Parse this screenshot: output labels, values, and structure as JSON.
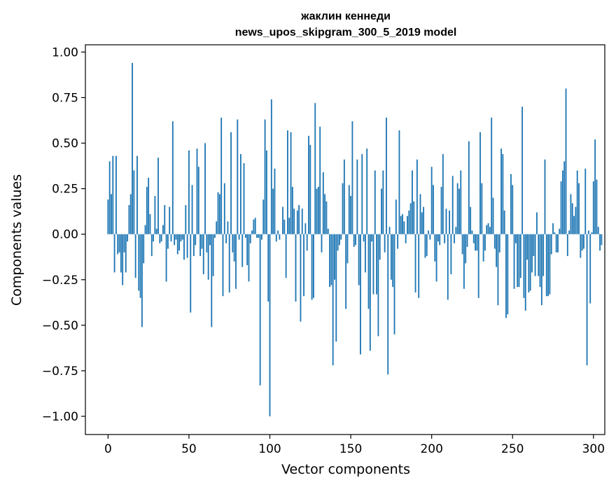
{
  "chart_data": {
    "type": "bar",
    "title": "жаклин кеннеди",
    "subtitle": "news_upos_skipgram_300_5_2019 model",
    "xlabel": "Vector components",
    "ylabel": "Components values",
    "xlim": [
      -14,
      307
    ],
    "ylim": [
      -1.1,
      1.04
    ],
    "xticks": [
      0,
      50,
      100,
      150,
      200,
      250,
      300
    ],
    "yticks": [
      1.0,
      0.75,
      0.5,
      0.25,
      0.0,
      -0.25,
      -0.5,
      -0.75,
      -1.0
    ],
    "xtick_labels": [
      "0",
      "50",
      "100",
      "150",
      "200",
      "250",
      "300"
    ],
    "ytick_labels": [
      "1.00",
      "0.75",
      "0.50",
      "0.25",
      "0.00",
      "−0.25",
      "−0.50",
      "−0.75",
      "−1.00"
    ],
    "grid": false,
    "color": "#1f77b4",
    "values": [
      0.19,
      0.4,
      0.22,
      0.43,
      -0.21,
      0.43,
      -0.11,
      -0.1,
      -0.21,
      -0.28,
      -0.1,
      -0.21,
      -0.04,
      0.16,
      0.22,
      0.94,
      0.35,
      -0.24,
      0.43,
      -0.31,
      -0.35,
      -0.51,
      -0.16,
      0.05,
      0.26,
      0.31,
      0.11,
      -0.12,
      -0.04,
      0.21,
      0.03,
      0.42,
      -0.05,
      -0.04,
      0.05,
      0.16,
      -0.26,
      -0.08,
      0.15,
      -0.04,
      0.62,
      -0.06,
      -0.03,
      -0.11,
      -0.09,
      -0.04,
      -0.03,
      -0.14,
      0.16,
      -0.13,
      0.46,
      -0.43,
      0.27,
      -0.12,
      -0.06,
      0.47,
      0.37,
      -0.12,
      -0.08,
      -0.22,
      0.5,
      -0.1,
      -0.25,
      -0.06,
      -0.51,
      -0.23,
      -0.02,
      0.07,
      0.23,
      0.22,
      0.64,
      -0.34,
      0.28,
      -0.05,
      0.07,
      -0.32,
      0.56,
      -0.1,
      -0.15,
      -0.3,
      0.63,
      -0.03,
      0.44,
      -0.18,
      0.39,
      -0.02,
      -0.17,
      -0.26,
      -0.05,
      0.02,
      0.08,
      0.09,
      -0.02,
      -0.02,
      -0.83,
      -0.03,
      0.19,
      0.63,
      0.46,
      -0.37,
      -1.0,
      0.74,
      0.25,
      0.36,
      -0.04,
      0.02,
      -0.03,
      0.0,
      0.15,
      0.08,
      -0.24,
      0.57,
      0.09,
      0.56,
      0.26,
      0.14,
      -0.37,
      0.13,
      0.16,
      -0.48,
      0.14,
      -0.34,
      0.06,
      -0.09,
      0.54,
      0.49,
      -0.36,
      -0.35,
      0.72,
      0.25,
      0.26,
      0.59,
      -0.1,
      0.34,
      0.22,
      0.18,
      0.03,
      -0.29,
      -0.28,
      -0.72,
      -0.25,
      -0.59,
      -0.09,
      -0.06,
      -0.03,
      0.28,
      0.41,
      -0.41,
      -0.16,
      0.27,
      0.21,
      0.62,
      -0.07,
      -0.06,
      0.41,
      -0.28,
      -0.66,
      0.44,
      -0.04,
      -0.21,
      0.47,
      -0.41,
      -0.64,
      -0.04,
      -0.33,
      0.35,
      -0.33,
      -0.56,
      -0.14,
      0.25,
      0.35,
      -0.1,
      0.64,
      -0.77,
      0.04,
      -0.25,
      -0.29,
      -0.55,
      0.19,
      -0.08,
      0.57,
      0.1,
      0.11,
      0.07,
      -0.05,
      0.1,
      0.13,
      0.17,
      0.35,
      0.18,
      -0.32,
      0.41,
      -0.35,
      0.22,
      0.12,
      0.15,
      -0.13,
      -0.12,
      0.02,
      -0.03,
      0.37,
      0.27,
      -0.15,
      -0.26,
      -0.04,
      -0.06,
      0.26,
      0.44,
      -0.05,
      0.14,
      -0.36,
      0.13,
      -0.22,
      0.32,
      -0.05,
      0.04,
      0.28,
      0.25,
      0.35,
      -0.11,
      -0.3,
      -0.16,
      -0.07,
      0.51,
      0.15,
      0.02,
      -0.05,
      -0.09,
      -0.09,
      -0.35,
      0.56,
      0.28,
      -0.15,
      -0.09,
      0.05,
      0.06,
      0.04,
      0.64,
      0.2,
      -0.08,
      -0.18,
      -0.39,
      -0.1,
      0.47,
      0.44,
      0.13,
      -0.46,
      -0.44,
      0.0,
      0.33,
      0.27,
      -0.3,
      -0.05,
      -0.29,
      -0.29,
      -0.24,
      0.7,
      -0.35,
      -0.42,
      -0.14,
      -0.32,
      -0.31,
      -0.21,
      -0.12,
      -0.23,
      0.12,
      -0.23,
      -0.29,
      -0.39,
      -0.23,
      0.41,
      -0.34,
      -0.34,
      -0.33,
      -0.11,
      0.06,
      0.01,
      -0.1,
      -0.1,
      0.03,
      0.29,
      0.35,
      0.4,
      0.8,
      -0.12,
      0.02,
      0.22,
      0.17,
      0.1,
      0.15,
      0.35,
      0.28,
      -0.13,
      -0.09,
      -0.08,
      0.36,
      -0.72,
      0.02,
      -0.38,
      0.01,
      0.29,
      0.52,
      0.3,
      0.04,
      -0.09,
      -0.06,
      0.0
    ]
  }
}
